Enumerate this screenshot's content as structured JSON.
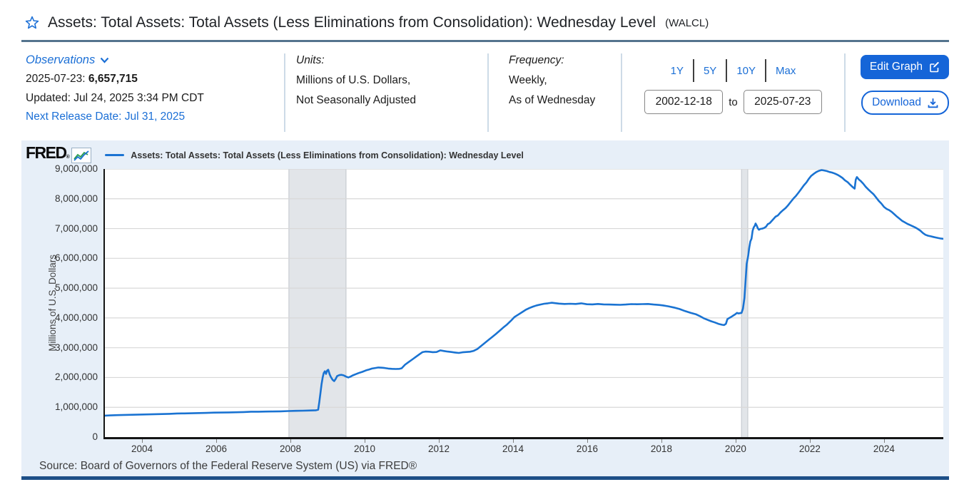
{
  "page": {
    "title": "Assets: Total Assets: Total Assets (Less Eliminations from Consolidation): Wednesday Level",
    "series_id_paren": "(WALCL)"
  },
  "observations": {
    "label": "Observations",
    "date_label": "2025-07-23:",
    "value": "6,657,715",
    "updated": "Updated: Jul 24, 2025 3:34 PM CDT",
    "next_release": "Next Release Date: Jul 31, 2025"
  },
  "units": {
    "label": "Units:",
    "line1": "Millions of U.S. Dollars,",
    "line2": "Not Seasonally Adjusted"
  },
  "frequency": {
    "label": "Frequency:",
    "line1": "Weekly,",
    "line2": "As of Wednesday"
  },
  "range": {
    "buttons": [
      "1Y",
      "5Y",
      "10Y",
      "Max"
    ],
    "start": "2002-12-18",
    "to_label": "to",
    "end": "2025-07-23"
  },
  "actions": {
    "edit_graph_label": "Edit Graph",
    "download_label": "Download"
  },
  "chart": {
    "brand": "FRED",
    "registered_mark": "®",
    "legend_label": "Assets: Total Assets: Total Assets (Less Eliminations from Consolidation): Wednesday Level",
    "source": "Source: Board of Governors of the Federal Reserve System (US) via FRED®"
  },
  "icons": {
    "star": "outline-star",
    "chevron_down": "chevron-down",
    "edit": "pencil-square",
    "download": "arrow-down-into-tray",
    "fred_chart": "zigzag-line-chart"
  },
  "colors": {
    "link_blue": "#1b6fd6",
    "button_blue": "#1565d8",
    "line_blue": "#1a73d2",
    "chart_bg": "#e7eff8",
    "title_divider": "#54748e",
    "bottom_bar": "#1d4f87"
  },
  "chart_data": {
    "type": "line",
    "title": "Assets: Total Assets: Total Assets (Less Eliminations from Consolidation): Wednesday Level",
    "xlabel": "",
    "ylabel": "Millions of U.S. Dollars",
    "x_range": [
      2002.96,
      2025.56
    ],
    "y_range": [
      0,
      9000000
    ],
    "grid": "horizontal",
    "legend_position": "top-left",
    "grid_color": "#d8d8d8",
    "band_color": "#e2e5e9",
    "band_border": "#c0c5cc",
    "y_ticks": [
      {
        "v": 0,
        "label": "0"
      },
      {
        "v": 1000000,
        "label": "1,000,000"
      },
      {
        "v": 2000000,
        "label": "2,000,000"
      },
      {
        "v": 3000000,
        "label": "3,000,000"
      },
      {
        "v": 4000000,
        "label": "4,000,000"
      },
      {
        "v": 5000000,
        "label": "5,000,000"
      },
      {
        "v": 6000000,
        "label": "6,000,000"
      },
      {
        "v": 7000000,
        "label": "7,000,000"
      },
      {
        "v": 8000000,
        "label": "8,000,000"
      },
      {
        "v": 9000000,
        "label": "9,000,000"
      }
    ],
    "x_ticks": [
      2004,
      2006,
      2008,
      2010,
      2012,
      2014,
      2016,
      2018,
      2020,
      2022,
      2024
    ],
    "recession_bands": [
      [
        2007.92,
        2009.46
      ],
      [
        2020.12,
        2020.29
      ]
    ],
    "last_observation": {
      "date": "2025-07-23",
      "value": 6657715
    },
    "series": [
      {
        "name": "Assets: Total Assets: Total Assets (Less Eliminations from Consolidation): Wednesday Level",
        "color": "#1a73d2",
        "points": [
          [
            2002.96,
            719600
          ],
          [
            2003.1,
            727000
          ],
          [
            2003.3,
            738000
          ],
          [
            2003.5,
            745000
          ],
          [
            2003.7,
            750000
          ],
          [
            2003.9,
            756000
          ],
          [
            2004.1,
            762000
          ],
          [
            2004.3,
            768000
          ],
          [
            2004.5,
            774000
          ],
          [
            2004.7,
            780000
          ],
          [
            2004.9,
            792000
          ],
          [
            2005.1,
            794000
          ],
          [
            2005.3,
            799000
          ],
          [
            2005.5,
            806000
          ],
          [
            2005.7,
            812000
          ],
          [
            2005.9,
            822000
          ],
          [
            2006.1,
            824000
          ],
          [
            2006.3,
            829000
          ],
          [
            2006.5,
            834000
          ],
          [
            2006.7,
            840000
          ],
          [
            2006.9,
            852000
          ],
          [
            2007.1,
            852000
          ],
          [
            2007.3,
            856000
          ],
          [
            2007.5,
            860000
          ],
          [
            2007.7,
            864000
          ],
          [
            2007.9,
            873000
          ],
          [
            2008.1,
            880000
          ],
          [
            2008.3,
            886000
          ],
          [
            2008.5,
            892000
          ],
          [
            2008.65,
            900000
          ],
          [
            2008.71,
            920000
          ],
          [
            2008.74,
            1180000
          ],
          [
            2008.77,
            1480000
          ],
          [
            2008.8,
            1770000
          ],
          [
            2008.83,
            2000000
          ],
          [
            2008.86,
            2150000
          ],
          [
            2008.89,
            2210000
          ],
          [
            2008.92,
            2120000
          ],
          [
            2008.95,
            2230000
          ],
          [
            2008.98,
            2260000
          ],
          [
            2009.02,
            2100000
          ],
          [
            2009.05,
            2020000
          ],
          [
            2009.1,
            1920000
          ],
          [
            2009.14,
            1880000
          ],
          [
            2009.18,
            1950000
          ],
          [
            2009.22,
            2050000
          ],
          [
            2009.28,
            2080000
          ],
          [
            2009.34,
            2090000
          ],
          [
            2009.4,
            2070000
          ],
          [
            2009.46,
            2030000
          ],
          [
            2009.52,
            2000000
          ],
          [
            2009.58,
            2030000
          ],
          [
            2009.64,
            2070000
          ],
          [
            2009.72,
            2110000
          ],
          [
            2009.8,
            2150000
          ],
          [
            2009.9,
            2190000
          ],
          [
            2010.0,
            2240000
          ],
          [
            2010.08,
            2270000
          ],
          [
            2010.16,
            2300000
          ],
          [
            2010.25,
            2320000
          ],
          [
            2010.33,
            2335000
          ],
          [
            2010.42,
            2330000
          ],
          [
            2010.5,
            2320000
          ],
          [
            2010.6,
            2300000
          ],
          [
            2010.7,
            2290000
          ],
          [
            2010.8,
            2285000
          ],
          [
            2010.9,
            2290000
          ],
          [
            2010.96,
            2310000
          ],
          [
            2011.05,
            2430000
          ],
          [
            2011.15,
            2520000
          ],
          [
            2011.25,
            2610000
          ],
          [
            2011.35,
            2700000
          ],
          [
            2011.45,
            2790000
          ],
          [
            2011.52,
            2850000
          ],
          [
            2011.6,
            2870000
          ],
          [
            2011.7,
            2865000
          ],
          [
            2011.8,
            2850000
          ],
          [
            2011.9,
            2855000
          ],
          [
            2012.0,
            2910000
          ],
          [
            2012.1,
            2890000
          ],
          [
            2012.2,
            2870000
          ],
          [
            2012.3,
            2855000
          ],
          [
            2012.4,
            2840000
          ],
          [
            2012.5,
            2825000
          ],
          [
            2012.6,
            2845000
          ],
          [
            2012.7,
            2855000
          ],
          [
            2012.8,
            2865000
          ],
          [
            2012.9,
            2895000
          ],
          [
            2013.0,
            2955000
          ],
          [
            2013.1,
            3060000
          ],
          [
            2013.2,
            3160000
          ],
          [
            2013.3,
            3260000
          ],
          [
            2013.4,
            3360000
          ],
          [
            2013.5,
            3460000
          ],
          [
            2013.6,
            3570000
          ],
          [
            2013.7,
            3680000
          ],
          [
            2013.8,
            3780000
          ],
          [
            2013.9,
            3900000
          ],
          [
            2014.0,
            4030000
          ],
          [
            2014.1,
            4110000
          ],
          [
            2014.2,
            4190000
          ],
          [
            2014.3,
            4270000
          ],
          [
            2014.4,
            4330000
          ],
          [
            2014.5,
            4380000
          ],
          [
            2014.6,
            4420000
          ],
          [
            2014.7,
            4450000
          ],
          [
            2014.8,
            4475000
          ],
          [
            2014.9,
            4490000
          ],
          [
            2015.0,
            4510000
          ],
          [
            2015.1,
            4495000
          ],
          [
            2015.2,
            4480000
          ],
          [
            2015.35,
            4470000
          ],
          [
            2015.5,
            4475000
          ],
          [
            2015.65,
            4470000
          ],
          [
            2015.8,
            4490000
          ],
          [
            2015.95,
            4460000
          ],
          [
            2016.1,
            4455000
          ],
          [
            2016.25,
            4470000
          ],
          [
            2016.4,
            4455000
          ],
          [
            2016.55,
            4450000
          ],
          [
            2016.7,
            4445000
          ],
          [
            2016.85,
            4440000
          ],
          [
            2017.0,
            4450000
          ],
          [
            2017.15,
            4465000
          ],
          [
            2017.3,
            4460000
          ],
          [
            2017.45,
            4465000
          ],
          [
            2017.6,
            4470000
          ],
          [
            2017.75,
            4450000
          ],
          [
            2017.9,
            4435000
          ],
          [
            2018.0,
            4420000
          ],
          [
            2018.15,
            4390000
          ],
          [
            2018.3,
            4350000
          ],
          [
            2018.45,
            4300000
          ],
          [
            2018.6,
            4230000
          ],
          [
            2018.75,
            4170000
          ],
          [
            2018.9,
            4120000
          ],
          [
            2019.0,
            4060000
          ],
          [
            2019.1,
            3990000
          ],
          [
            2019.2,
            3940000
          ],
          [
            2019.3,
            3890000
          ],
          [
            2019.4,
            3850000
          ],
          [
            2019.5,
            3800000
          ],
          [
            2019.6,
            3770000
          ],
          [
            2019.65,
            3760000
          ],
          [
            2019.7,
            3800000
          ],
          [
            2019.74,
            3960000
          ],
          [
            2019.78,
            3990000
          ],
          [
            2019.82,
            4020000
          ],
          [
            2019.86,
            4050000
          ],
          [
            2019.9,
            4080000
          ],
          [
            2019.95,
            4120000
          ],
          [
            2020.0,
            4170000
          ],
          [
            2020.04,
            4150000
          ],
          [
            2020.08,
            4160000
          ],
          [
            2020.12,
            4170000
          ],
          [
            2020.16,
            4310000
          ],
          [
            2020.2,
            4670000
          ],
          [
            2020.23,
            5250000
          ],
          [
            2020.26,
            5810000
          ],
          [
            2020.3,
            6080000
          ],
          [
            2020.33,
            6370000
          ],
          [
            2020.36,
            6570000
          ],
          [
            2020.39,
            6660000
          ],
          [
            2020.42,
            6930000
          ],
          [
            2020.45,
            7040000
          ],
          [
            2020.48,
            7100000
          ],
          [
            2020.5,
            7170000
          ],
          [
            2020.53,
            7100000
          ],
          [
            2020.56,
            7010000
          ],
          [
            2020.59,
            6960000
          ],
          [
            2020.63,
            6990000
          ],
          [
            2020.68,
            7000000
          ],
          [
            2020.73,
            7020000
          ],
          [
            2020.78,
            7060000
          ],
          [
            2020.83,
            7150000
          ],
          [
            2020.88,
            7180000
          ],
          [
            2020.93,
            7250000
          ],
          [
            2020.98,
            7320000
          ],
          [
            2021.04,
            7400000
          ],
          [
            2021.1,
            7440000
          ],
          [
            2021.17,
            7540000
          ],
          [
            2021.24,
            7620000
          ],
          [
            2021.31,
            7690000
          ],
          [
            2021.38,
            7790000
          ],
          [
            2021.45,
            7900000
          ],
          [
            2021.52,
            8010000
          ],
          [
            2021.59,
            8100000
          ],
          [
            2021.66,
            8210000
          ],
          [
            2021.73,
            8330000
          ],
          [
            2021.8,
            8450000
          ],
          [
            2021.87,
            8550000
          ],
          [
            2021.94,
            8680000
          ],
          [
            2022.0,
            8770000
          ],
          [
            2022.07,
            8840000
          ],
          [
            2022.14,
            8900000
          ],
          [
            2022.21,
            8940000
          ],
          [
            2022.28,
            8965000
          ],
          [
            2022.35,
            8950000
          ],
          [
            2022.42,
            8930000
          ],
          [
            2022.49,
            8900000
          ],
          [
            2022.56,
            8880000
          ],
          [
            2022.63,
            8850000
          ],
          [
            2022.7,
            8810000
          ],
          [
            2022.77,
            8760000
          ],
          [
            2022.84,
            8700000
          ],
          [
            2022.91,
            8620000
          ],
          [
            2022.98,
            8560000
          ],
          [
            2023.05,
            8470000
          ],
          [
            2023.12,
            8390000
          ],
          [
            2023.17,
            8340000
          ],
          [
            2023.2,
            8640000
          ],
          [
            2023.23,
            8730000
          ],
          [
            2023.28,
            8650000
          ],
          [
            2023.33,
            8600000
          ],
          [
            2023.4,
            8510000
          ],
          [
            2023.47,
            8400000
          ],
          [
            2023.54,
            8310000
          ],
          [
            2023.61,
            8230000
          ],
          [
            2023.68,
            8150000
          ],
          [
            2023.75,
            8040000
          ],
          [
            2023.82,
            7930000
          ],
          [
            2023.89,
            7840000
          ],
          [
            2023.96,
            7730000
          ],
          [
            2024.03,
            7660000
          ],
          [
            2024.1,
            7620000
          ],
          [
            2024.17,
            7560000
          ],
          [
            2024.24,
            7480000
          ],
          [
            2024.31,
            7400000
          ],
          [
            2024.38,
            7330000
          ],
          [
            2024.45,
            7260000
          ],
          [
            2024.52,
            7210000
          ],
          [
            2024.59,
            7160000
          ],
          [
            2024.66,
            7120000
          ],
          [
            2024.73,
            7080000
          ],
          [
            2024.8,
            7040000
          ],
          [
            2024.87,
            6990000
          ],
          [
            2024.94,
            6930000
          ],
          [
            2025.01,
            6850000
          ],
          [
            2025.08,
            6790000
          ],
          [
            2025.15,
            6760000
          ],
          [
            2025.22,
            6740000
          ],
          [
            2025.29,
            6720000
          ],
          [
            2025.36,
            6700000
          ],
          [
            2025.43,
            6680000
          ],
          [
            2025.5,
            6665000
          ],
          [
            2025.56,
            6657715
          ]
        ]
      }
    ]
  }
}
